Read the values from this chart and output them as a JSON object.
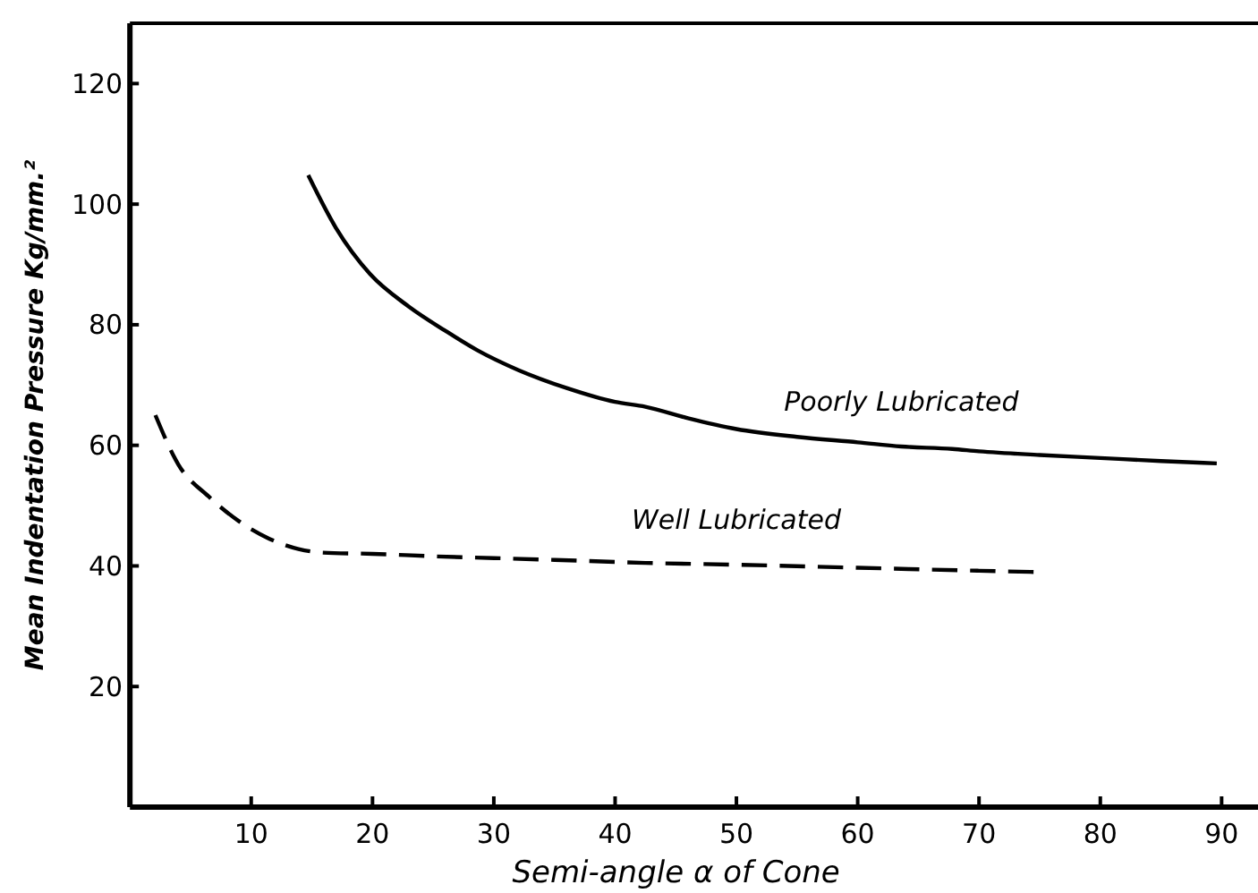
{
  "chart_data": {
    "type": "line",
    "xlabel": "Semi-angle α of Cone",
    "ylabel": "Mean Indentation Pressure Kg/mm.²",
    "xlim": [
      0,
      93
    ],
    "ylim": [
      0,
      130
    ],
    "xticks": [
      10,
      20,
      30,
      40,
      50,
      60,
      70,
      80,
      90
    ],
    "yticks": [
      20,
      40,
      60,
      80,
      100,
      120
    ],
    "grid": false,
    "legend": false,
    "marker": "none",
    "series": [
      {
        "name": "Poorly Lubricated",
        "color": "#000000",
        "line_style": "solid",
        "x": [
          14.7,
          17,
          19.8,
          23,
          26,
          28.7,
          32,
          36,
          40,
          42.5,
          46,
          50,
          55,
          60,
          63.6,
          67.8,
          70,
          75,
          80,
          85,
          89.6
        ],
        "values": [
          104.8,
          96,
          88.4,
          83,
          79,
          75.7,
          72.5,
          69.5,
          67.2,
          66.4,
          64.5,
          62.7,
          61.4,
          60.5,
          59.8,
          59.4,
          59,
          58.4,
          57.9,
          57.4,
          57
        ]
      },
      {
        "name": "Well Lubricated",
        "color": "#000000",
        "line_style": "dashed",
        "x": [
          2.1,
          4,
          6.5,
          9,
          11.5,
          13.9,
          15.9,
          20,
          25,
          30,
          35,
          42.5,
          50,
          60,
          70,
          74.5
        ],
        "values": [
          65,
          56.8,
          51.5,
          47.4,
          44.5,
          42.8,
          42.2,
          42,
          41.6,
          41.3,
          41,
          40.5,
          40.2,
          39.7,
          39.2,
          39
        ]
      }
    ]
  }
}
